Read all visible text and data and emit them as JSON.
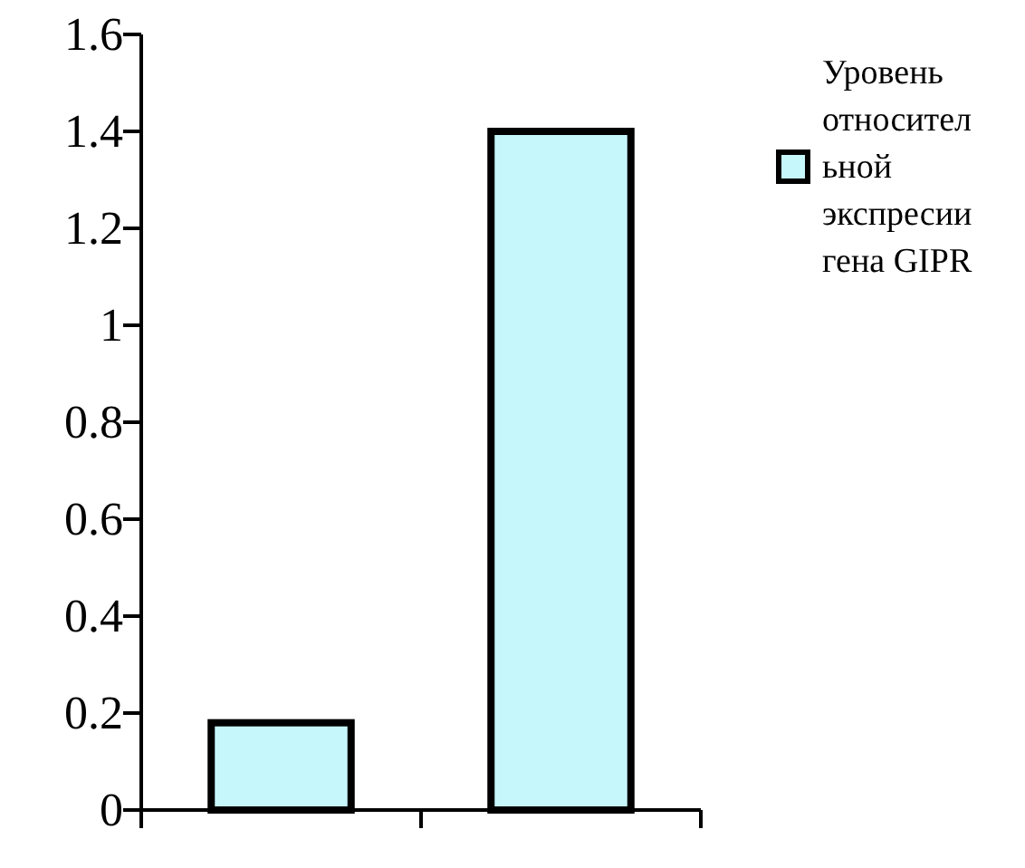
{
  "chart_data": {
    "type": "bar",
    "categories": [
      null,
      null
    ],
    "series": [
      {
        "name": "Уровень относительной экспресии гена GIPR",
        "color": "#c6f7fb",
        "values": [
          0.18,
          1.4
        ]
      }
    ],
    "ylim": [
      0,
      1.6
    ],
    "yticks": [
      0,
      0.2,
      0.4,
      0.6,
      0.8,
      1,
      1.2,
      1.4,
      1.6
    ],
    "grid": false,
    "legend": "right"
  }
}
